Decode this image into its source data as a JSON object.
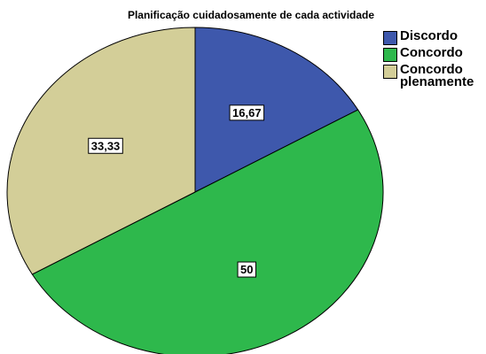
{
  "chart_data": {
    "type": "pie",
    "title": "Planificação cuidadosamente  de cada actividade",
    "categories": [
      "Discordo",
      "Concordo",
      "Concordo plenamente"
    ],
    "values": [
      16.67,
      50,
      33.33
    ],
    "value_labels": [
      "16,67",
      "50",
      "33,33"
    ],
    "colors": [
      "#3e58ac",
      "#2eb84c",
      "#d3ce98"
    ],
    "legend": "top-right"
  }
}
